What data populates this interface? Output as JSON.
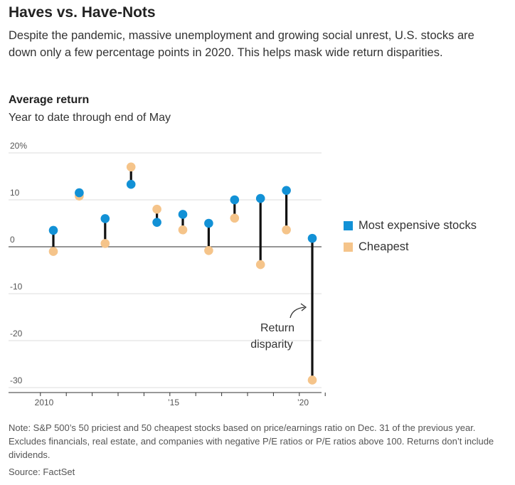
{
  "title": "Haves vs. Have-Nots",
  "subtitle": "Despite the pandemic, massive unemployment and growing social unrest, U.S. stocks are down only a few percentage points in 2020. This helps mask wide return disparities.",
  "chart_heading": "Average return",
  "chart_subheading": "Year to date through end of May",
  "note": "Note: S&P 500’s 50 priciest and 50 cheapest stocks based on price/earnings ratio on Dec. 31 of the previous year. Excludes financials, real estate, and companies with negative P/E ratios or P/E ratios above 100. Returns don’t include dividends.",
  "source": "Source: FactSet",
  "colors": {
    "expensive": "#1291d6",
    "cheapest": "#f5c48a",
    "connector": "#111111"
  },
  "chart_data": {
    "type": "dot-range",
    "x": [
      2010,
      2011,
      2012,
      2013,
      2014,
      2015,
      2016,
      2017,
      2018,
      2019,
      2020
    ],
    "series": [
      {
        "name": "Most expensive stocks",
        "values": [
          3.5,
          11.5,
          6.0,
          13.3,
          5.2,
          6.9,
          5.0,
          10.0,
          10.3,
          12.0,
          1.8
        ]
      },
      {
        "name": "Cheapest",
        "values": [
          -1.0,
          10.8,
          0.7,
          17.0,
          8.0,
          3.6,
          -0.8,
          6.1,
          -3.8,
          3.6,
          -28.4
        ]
      }
    ],
    "ylim": [
      -30,
      20
    ],
    "yticks": [
      {
        "value": 20,
        "label": "20%"
      },
      {
        "value": 10,
        "label": "10"
      },
      {
        "value": 0,
        "label": "0"
      },
      {
        "value": -10,
        "label": "-10"
      },
      {
        "value": -20,
        "label": "-20"
      },
      {
        "value": -30,
        "label": "-30"
      }
    ],
    "xticks": [
      {
        "value": 2010,
        "label": "2010"
      },
      {
        "value": 2015,
        "label": "’15"
      },
      {
        "value": 2020,
        "label": "’20"
      }
    ],
    "annotation": {
      "line1": "Return",
      "line2": "disparity"
    },
    "grid": true,
    "legend": "right"
  }
}
